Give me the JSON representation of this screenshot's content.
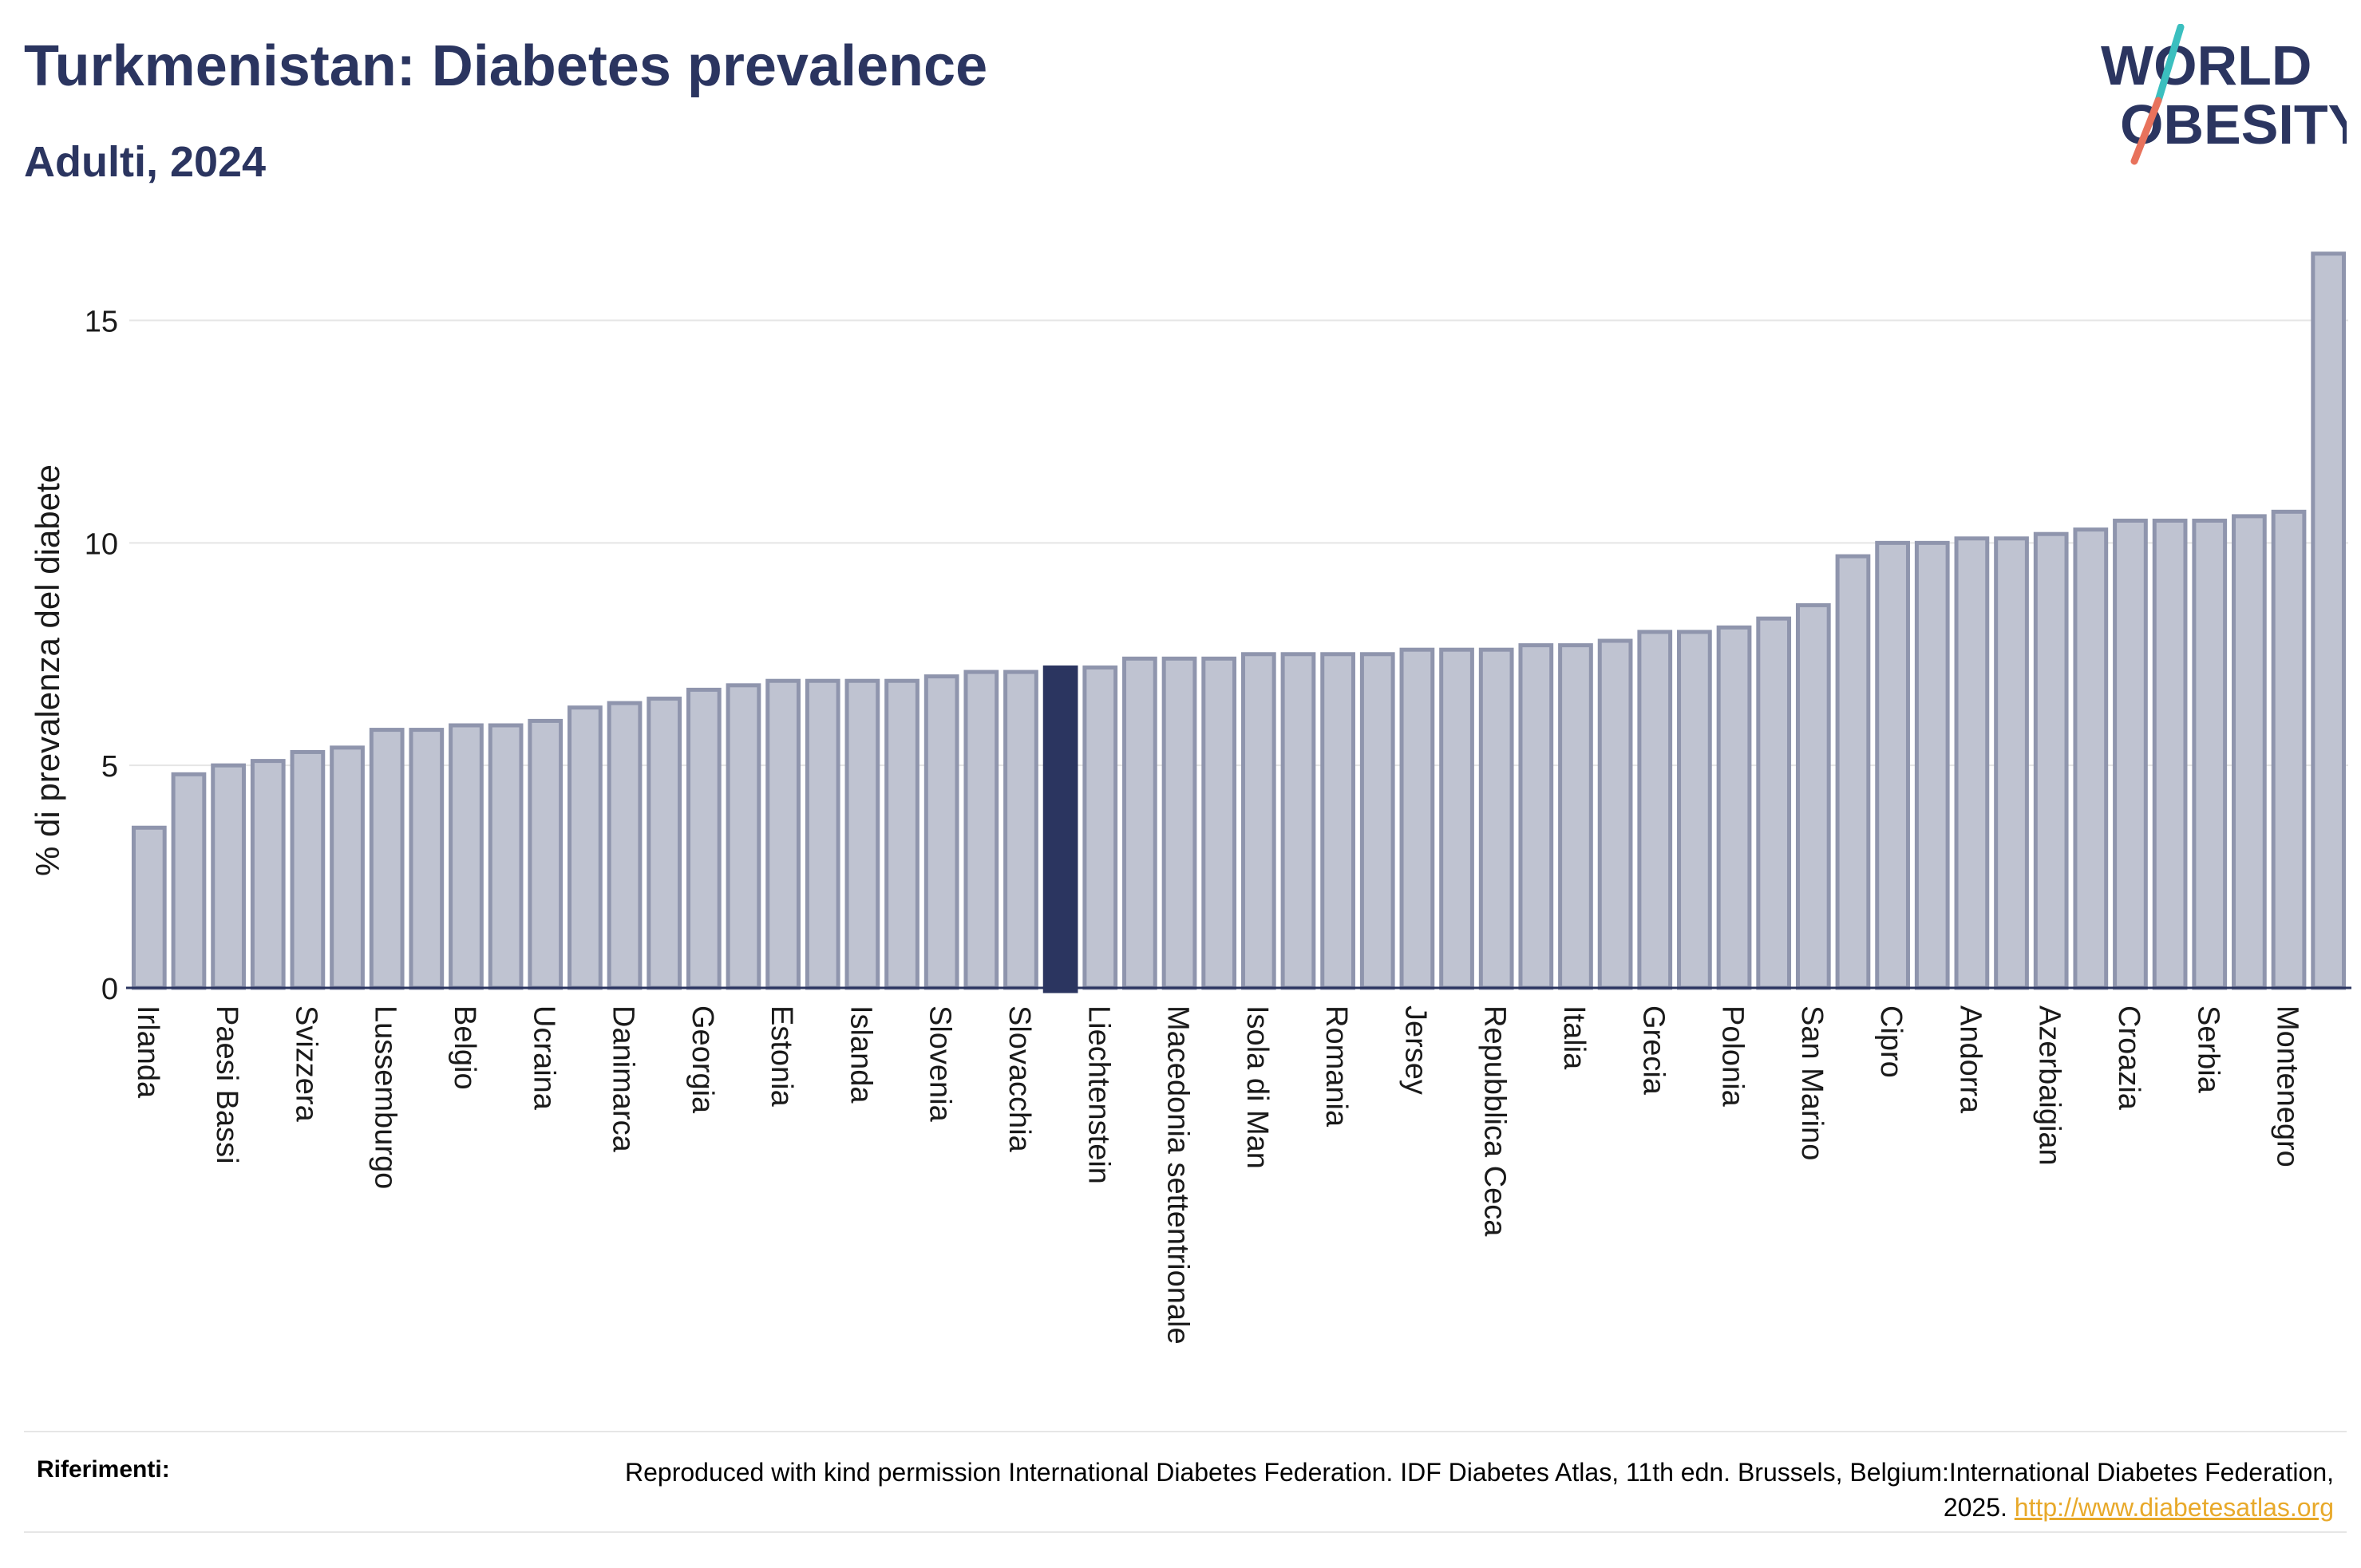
{
  "header": {
    "title": "Turkmenistan: Diabetes prevalence",
    "subtitle": "Adulti, 2024"
  },
  "logo": {
    "line1": "WORLD",
    "line2": "OBESITY"
  },
  "chart_data": {
    "type": "bar",
    "title": "Turkmenistan: Diabetes prevalence",
    "subtitle": "Adulti, 2024",
    "xlabel": "",
    "ylabel": "% di prevalenza del diabete",
    "ylim": [
      0,
      17
    ],
    "yticks": [
      0,
      5,
      10,
      15
    ],
    "grid": true,
    "highlight_index": 23,
    "colors": {
      "bar": "#bfc3d1",
      "bar_edge": "#8f95ad",
      "highlight": "#2b3560",
      "grid": "#e5e5e5",
      "axis": "#2b3560"
    },
    "categories": [
      "Irlanda",
      "",
      "Paesi Bassi",
      "",
      "Svizzera",
      "",
      "Lussemburgo",
      "",
      "Belgio",
      "",
      "Ucraina",
      "",
      "Danimarca",
      "",
      "Georgia",
      "",
      "Estonia",
      "",
      "Islanda",
      "",
      "Slovenia",
      "",
      "Slovacchia",
      "",
      "Liechtenstein",
      "",
      "Macedonia settentrionale",
      "",
      "Isola di Man",
      "",
      "Romania",
      "",
      "Jersey",
      "",
      "Repubblica Ceca",
      "",
      "Italia",
      "",
      "Grecia",
      "",
      "Polonia",
      "",
      "San Marino",
      "",
      "Cipro",
      "",
      "Andorra",
      "",
      "Azerbaigian",
      "",
      "Croazia",
      "",
      "Serbia",
      "",
      "Montenegro",
      ""
    ],
    "values": [
      3.6,
      4.8,
      5.0,
      5.1,
      5.3,
      5.4,
      5.8,
      5.8,
      5.9,
      5.9,
      6.0,
      6.3,
      6.4,
      6.5,
      6.7,
      6.8,
      6.9,
      6.9,
      6.9,
      6.9,
      7.0,
      7.1,
      7.1,
      7.2,
      7.2,
      7.4,
      7.4,
      7.4,
      7.5,
      7.5,
      7.5,
      7.5,
      7.6,
      7.6,
      7.6,
      7.7,
      7.7,
      7.8,
      8.0,
      8.0,
      8.1,
      8.3,
      8.6,
      9.7,
      10.0,
      10.0,
      10.1,
      10.1,
      10.2,
      10.3,
      10.5,
      10.5,
      10.5,
      10.6,
      10.7,
      16.5
    ]
  },
  "footer": {
    "label": "Riferimenti:",
    "text": "Reproduced with kind permission International Diabetes Federation. IDF Diabetes Atlas, 11th edn. Brussels, Belgium:International Diabetes Federation, 2025.",
    "link": "http://www.diabetesatlas.org"
  }
}
